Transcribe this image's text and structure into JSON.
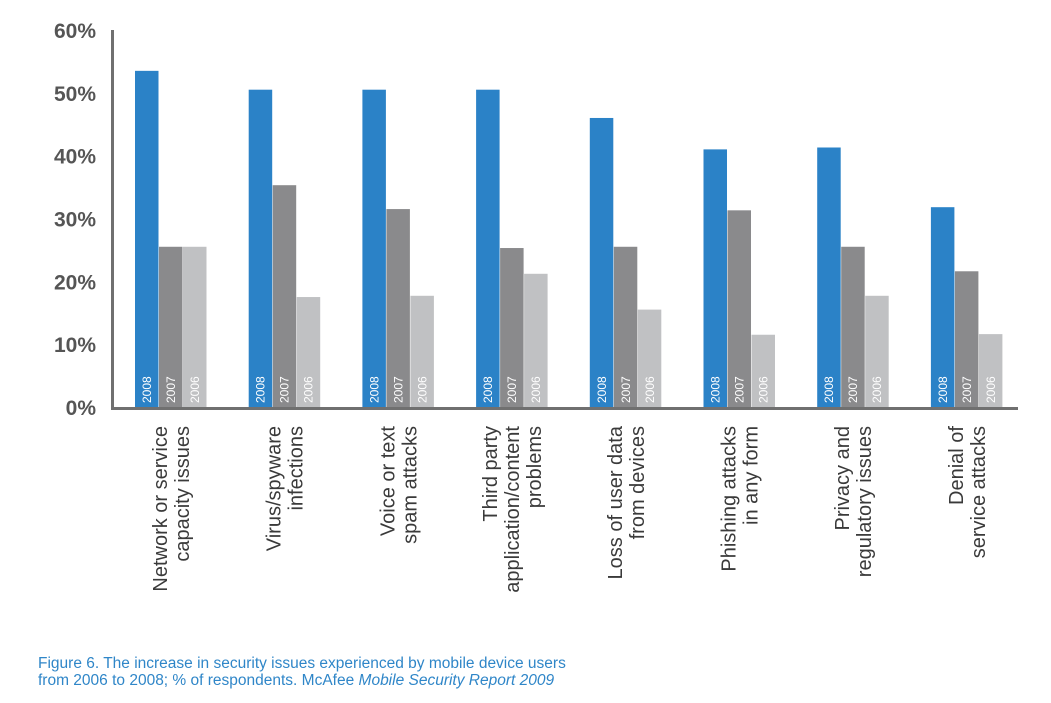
{
  "chart_data": {
    "type": "bar",
    "orientation": "vertical",
    "categories": [
      [
        "Network or service",
        "capacity issues"
      ],
      [
        "Virus/spyware",
        "infections"
      ],
      [
        "Voice or text",
        "spam attacks"
      ],
      [
        "Third party",
        "application/content",
        "problems"
      ],
      [
        "Loss of user data",
        "from devices"
      ],
      [
        "Phishing attacks",
        "in any form"
      ],
      [
        "Privacy and",
        "regulatory issues"
      ],
      [
        "Denial of",
        "service attacks"
      ]
    ],
    "series": [
      {
        "name": "2008",
        "color": "#2b82c7",
        "values": [
          53.5,
          50.5,
          50.5,
          50.5,
          46,
          41,
          41.3,
          31.8
        ]
      },
      {
        "name": "2007",
        "color": "#8a8a8c",
        "values": [
          25.5,
          35.3,
          31.5,
          25.3,
          25.5,
          31.3,
          25.5,
          21.6
        ]
      },
      {
        "name": "2006",
        "color": "#c0c1c3",
        "values": [
          25.5,
          17.5,
          17.7,
          21.2,
          15.5,
          11.5,
          17.7,
          11.6
        ]
      }
    ],
    "yticks": [
      "0%",
      "10%",
      "20%",
      "30%",
      "40%",
      "50%",
      "60%"
    ],
    "ylim": [
      0,
      60
    ],
    "grid": false,
    "legend": "none",
    "title": "",
    "xlabel": "",
    "ylabel": ""
  },
  "caption": {
    "line1": "Figure 6.  The increase in security issues experienced by mobile device users",
    "line2_prefix": "from 2006 to 2008; % of respondents. McAfee ",
    "line2_source": "Mobile Security Report 2009"
  }
}
